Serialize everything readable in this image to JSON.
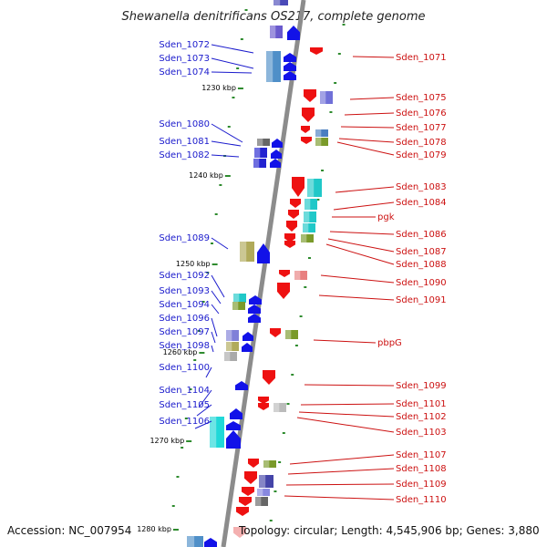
{
  "title": "Shewanella denitrificans OS217, complete genome",
  "footer": {
    "accession": "Accession: NC_007954",
    "topology": "Topology: circular; Length: 4,545,906 bp; Genes: 3,880"
  },
  "colors": {
    "left_label": "#1a1acc",
    "right_label": "#cc1111",
    "backbone": "#8c8c8c",
    "tick": "#2e8b2e"
  },
  "scale_labels": [
    {
      "label": "1230 kbp",
      "kbp": 1230
    },
    {
      "label": "1240 kbp",
      "kbp": 1240
    },
    {
      "label": "1250 kbp",
      "kbp": 1250
    },
    {
      "label": "1260 kbp",
      "kbp": 1260
    },
    {
      "label": "1270 kbp",
      "kbp": 1270
    },
    {
      "label": "1280 kbp",
      "kbp": 1280
    }
  ],
  "left_genes": [
    {
      "label": "Sden_1072"
    },
    {
      "label": "Sden_1073"
    },
    {
      "label": "Sden_1074"
    },
    {
      "label": "Sden_1080"
    },
    {
      "label": "Sden_1081"
    },
    {
      "label": "Sden_1082"
    },
    {
      "label": "Sden_1089"
    },
    {
      "label": "Sden_1092"
    },
    {
      "label": "Sden_1093"
    },
    {
      "label": "Sden_1094"
    },
    {
      "label": "Sden_1096"
    },
    {
      "label": "Sden_1097"
    },
    {
      "label": "Sden_1098"
    },
    {
      "label": "Sden_1100"
    },
    {
      "label": "Sden_1104"
    },
    {
      "label": "Sden_1105"
    },
    {
      "label": "Sden_1106"
    }
  ],
  "right_genes": [
    {
      "label": "Sden_1071"
    },
    {
      "label": "Sden_1075"
    },
    {
      "label": "Sden_1076"
    },
    {
      "label": "Sden_1077"
    },
    {
      "label": "Sden_1078"
    },
    {
      "label": "Sden_1079"
    },
    {
      "label": "Sden_1083"
    },
    {
      "label": "Sden_1084"
    },
    {
      "label": "pgk"
    },
    {
      "label": "Sden_1086"
    },
    {
      "label": "Sden_1087"
    },
    {
      "label": "Sden_1088"
    },
    {
      "label": "Sden_1090"
    },
    {
      "label": "Sden_1091"
    },
    {
      "label": "pbpG"
    },
    {
      "label": "Sden_1099"
    },
    {
      "label": "Sden_1101"
    },
    {
      "label": "Sden_1102"
    },
    {
      "label": "Sden_1103"
    },
    {
      "label": "Sden_1107"
    },
    {
      "label": "Sden_1108"
    },
    {
      "label": "Sden_1109"
    },
    {
      "label": "Sden_1110"
    }
  ]
}
